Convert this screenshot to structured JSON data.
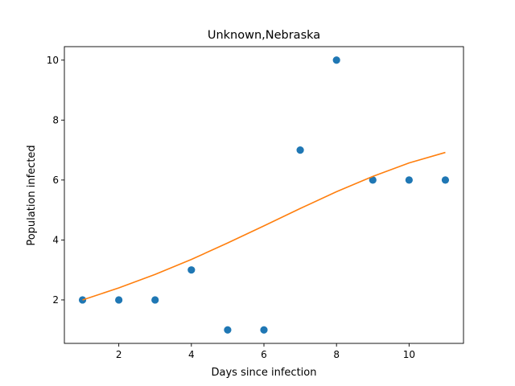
{
  "chart_data": {
    "type": "scatter",
    "title": "Unknown,Nebraska",
    "xlabel": "Days since infection",
    "ylabel": "Population infected",
    "xlim": [
      0.5,
      11.5
    ],
    "ylim": [
      0.55,
      10.45
    ],
    "xticks": [
      2,
      4,
      6,
      8,
      10
    ],
    "yticks": [
      2,
      4,
      6,
      8,
      10
    ],
    "grid": false,
    "series": [
      {
        "kind": "scatter",
        "color": "#1f77b4",
        "x": [
          1,
          2,
          3,
          4,
          5,
          6,
          7,
          8,
          9,
          10,
          11
        ],
        "y": [
          2,
          2,
          2,
          3,
          1,
          1,
          7,
          10,
          6,
          6,
          6
        ]
      },
      {
        "kind": "line",
        "color": "#ff7f0e",
        "x": [
          1,
          2,
          3,
          4,
          5,
          6,
          7,
          8,
          9,
          10,
          11
        ],
        "y": [
          2.0,
          2.4,
          2.85,
          3.35,
          3.9,
          4.47,
          5.05,
          5.61,
          6.12,
          6.57,
          6.92
        ]
      }
    ]
  }
}
